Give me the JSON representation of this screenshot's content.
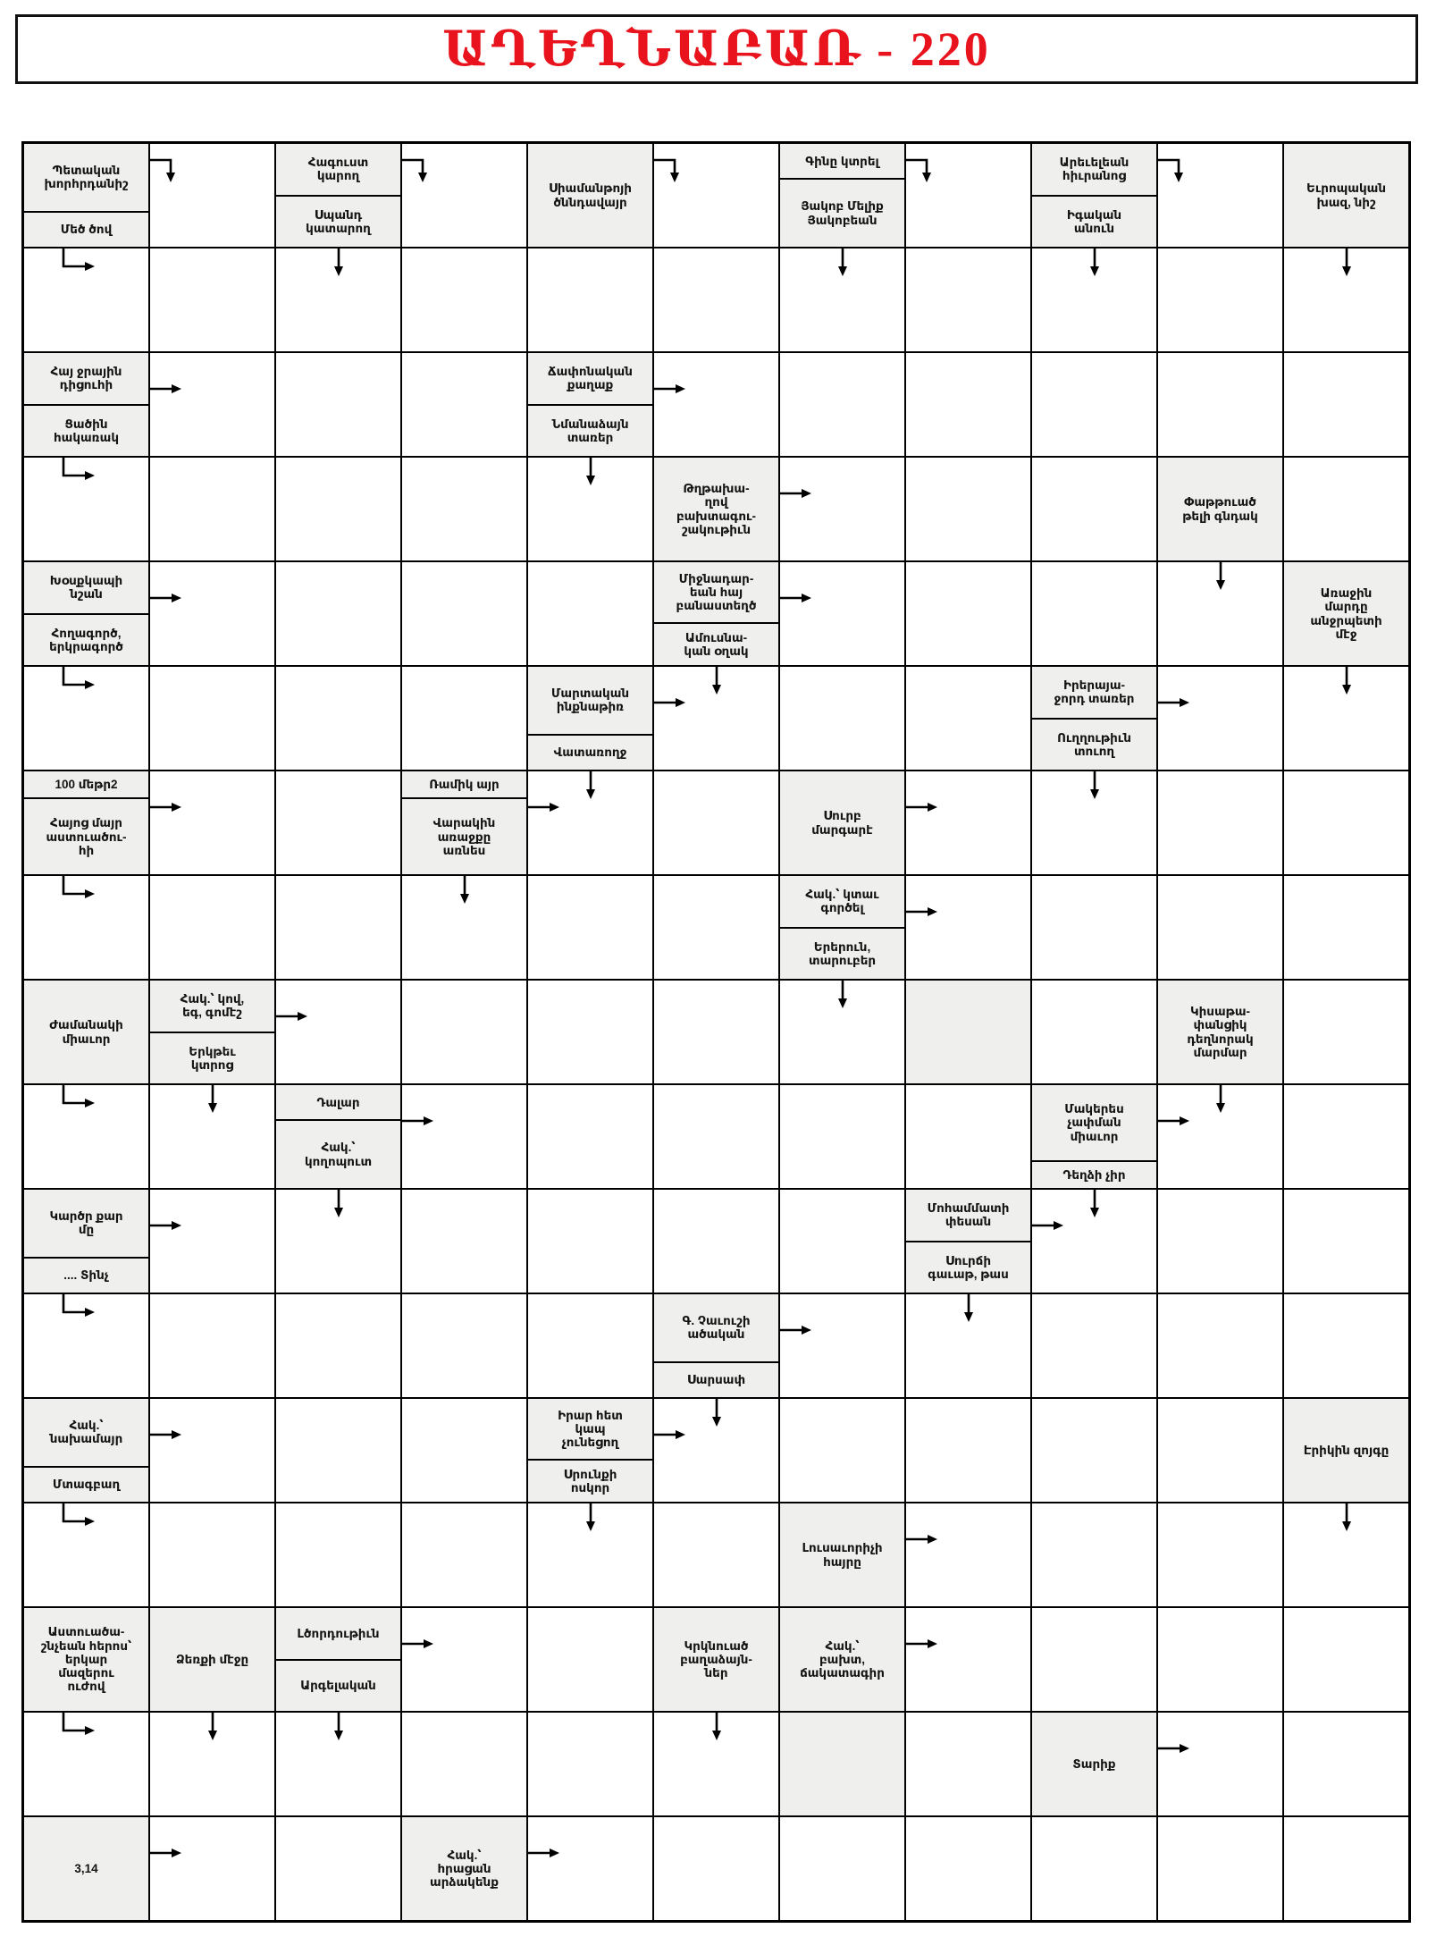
{
  "title": "ԱՂԵՂՆԱԲԱՌ - 220",
  "title_color": "#e8131d",
  "grid": {
    "rows": 17,
    "cols": 11,
    "clue_bg": "#efefed",
    "line_color": "#000000",
    "cells": [
      {
        "r": 1,
        "c": 1,
        "kind": "split",
        "top": [
          "Պետական",
          "խորհրդանիշ"
        ],
        "bottom": [
          "Մեծ ծով"
        ]
      },
      {
        "r": 1,
        "c": 2,
        "kind": "answer",
        "arrows": [
          "elbow-turn-down"
        ]
      },
      {
        "r": 1,
        "c": 3,
        "kind": "split",
        "top": [
          "Հագուստ",
          "կարող"
        ],
        "bottom": [
          "Սպանդ",
          "կատարող"
        ]
      },
      {
        "r": 1,
        "c": 4,
        "kind": "answer",
        "arrows": [
          "elbow-turn-down"
        ]
      },
      {
        "r": 1,
        "c": 5,
        "kind": "clue",
        "lines": [
          "Սիամանթոյի",
          "ծննդավայր"
        ]
      },
      {
        "r": 1,
        "c": 6,
        "kind": "answer",
        "arrows": [
          "elbow-turn-down"
        ]
      },
      {
        "r": 1,
        "c": 7,
        "kind": "split",
        "top": [
          "Գինը կտրել"
        ],
        "bottom": [
          "Յակոբ Մելիք",
          "Յակոբեան"
        ]
      },
      {
        "r": 1,
        "c": 8,
        "kind": "answer",
        "arrows": [
          "elbow-turn-down"
        ]
      },
      {
        "r": 1,
        "c": 9,
        "kind": "split",
        "top": [
          "Արեւելեան",
          "հիւրանոց"
        ],
        "bottom": [
          "Իգական",
          "անուն"
        ]
      },
      {
        "r": 1,
        "c": 10,
        "kind": "answer",
        "arrows": [
          "elbow-turn-down"
        ]
      },
      {
        "r": 1,
        "c": 11,
        "kind": "clue",
        "lines": [
          "Եւրոպական",
          "խազ, նիշ"
        ]
      },
      {
        "r": 2,
        "c": 1,
        "kind": "answer",
        "arrows": [
          "elbow-turn-right"
        ]
      },
      {
        "r": 2,
        "c": 3,
        "kind": "answer",
        "arrows": [
          "down"
        ]
      },
      {
        "r": 2,
        "c": 7,
        "kind": "answer",
        "arrows": [
          "down"
        ]
      },
      {
        "r": 2,
        "c": 9,
        "kind": "answer",
        "arrows": [
          "down"
        ]
      },
      {
        "r": 2,
        "c": 11,
        "kind": "answer",
        "arrows": [
          "down"
        ]
      },
      {
        "r": 3,
        "c": 1,
        "kind": "split",
        "top": [
          "Հայ ջրային",
          "դիցուհի"
        ],
        "bottom": [
          "Ցածին",
          "հակառակ"
        ]
      },
      {
        "r": 3,
        "c": 2,
        "kind": "answer",
        "arrows": [
          "right"
        ]
      },
      {
        "r": 3,
        "c": 5,
        "kind": "split",
        "top": [
          "Ճափոնական",
          "քաղաք"
        ],
        "bottom": [
          "Նմանաձայն",
          "տառեր"
        ]
      },
      {
        "r": 3,
        "c": 6,
        "kind": "answer",
        "arrows": [
          "right"
        ]
      },
      {
        "r": 4,
        "c": 1,
        "kind": "answer",
        "arrows": [
          "elbow-turn-right"
        ]
      },
      {
        "r": 4,
        "c": 5,
        "kind": "answer",
        "arrows": [
          "down"
        ]
      },
      {
        "r": 4,
        "c": 6,
        "kind": "clue",
        "lines": [
          "Թղթախա-",
          "ղով",
          "բախտագու-",
          "շակութիւն"
        ]
      },
      {
        "r": 4,
        "c": 7,
        "kind": "answer",
        "arrows": [
          "right"
        ]
      },
      {
        "r": 4,
        "c": 10,
        "kind": "clue",
        "lines": [
          "Փաթթուած",
          "թելի գնդակ"
        ]
      },
      {
        "r": 5,
        "c": 1,
        "kind": "split",
        "top": [
          "Խօսքկապի",
          "նշան"
        ],
        "bottom": [
          "Հողագործ,",
          "երկրագործ"
        ]
      },
      {
        "r": 5,
        "c": 2,
        "kind": "answer",
        "arrows": [
          "right"
        ]
      },
      {
        "r": 5,
        "c": 6,
        "kind": "split",
        "top": [
          "Միջնադար-",
          "եան հայ",
          "բանաստեղծ"
        ],
        "bottom": [
          "Ամուսնա-",
          "կան օղակ"
        ]
      },
      {
        "r": 5,
        "c": 7,
        "kind": "answer",
        "arrows": [
          "right"
        ]
      },
      {
        "r": 5,
        "c": 10,
        "kind": "answer",
        "arrows": [
          "down"
        ]
      },
      {
        "r": 5,
        "c": 11,
        "kind": "clue",
        "lines": [
          "Առաջին",
          "մարդը",
          "անջրպետի",
          "մէջ"
        ]
      },
      {
        "r": 6,
        "c": 1,
        "kind": "answer",
        "arrows": [
          "elbow-turn-right"
        ]
      },
      {
        "r": 6,
        "c": 5,
        "kind": "split",
        "top": [
          "Մարտական",
          "ինքնաթիռ"
        ],
        "bottom": [
          "Վատառողջ"
        ]
      },
      {
        "r": 6,
        "c": 6,
        "kind": "answer",
        "arrows": [
          "down",
          "right"
        ]
      },
      {
        "r": 6,
        "c": 9,
        "kind": "split",
        "top": [
          "Իրերայա-",
          "ջորդ տառեր"
        ],
        "bottom": [
          "Ուղղութիւն",
          "տուող"
        ]
      },
      {
        "r": 6,
        "c": 10,
        "kind": "answer",
        "arrows": [
          "right"
        ]
      },
      {
        "r": 6,
        "c": 11,
        "kind": "answer",
        "arrows": [
          "down"
        ]
      },
      {
        "r": 7,
        "c": 1,
        "kind": "split",
        "top": [
          "100 մեթր2"
        ],
        "bottom": [
          "Հայոց մայր",
          "աստուածու-",
          "հի"
        ]
      },
      {
        "r": 7,
        "c": 2,
        "kind": "answer",
        "arrows": [
          "right"
        ]
      },
      {
        "r": 7,
        "c": 4,
        "kind": "split",
        "top": [
          "Ռամիկ  այր"
        ],
        "bottom": [
          "Վարակին",
          "առաջքը",
          "առնես"
        ]
      },
      {
        "r": 7,
        "c": 5,
        "kind": "answer",
        "arrows": [
          "down",
          "right"
        ]
      },
      {
        "r": 7,
        "c": 7,
        "kind": "clue",
        "lines": [
          "Սուրբ",
          "մարգարէ"
        ]
      },
      {
        "r": 7,
        "c": 8,
        "kind": "answer",
        "arrows": [
          "right"
        ]
      },
      {
        "r": 7,
        "c": 9,
        "kind": "answer",
        "arrows": [
          "down"
        ]
      },
      {
        "r": 8,
        "c": 1,
        "kind": "answer",
        "arrows": [
          "elbow-turn-right"
        ]
      },
      {
        "r": 8,
        "c": 4,
        "kind": "answer",
        "arrows": [
          "down"
        ]
      },
      {
        "r": 8,
        "c": 7,
        "kind": "split",
        "top": [
          "Հակ.՝ կտաւ",
          "գործել"
        ],
        "bottom": [
          "Երերուն,",
          "տարուբեր"
        ]
      },
      {
        "r": 8,
        "c": 8,
        "kind": "answer",
        "arrows": [
          "right"
        ]
      },
      {
        "r": 9,
        "c": 1,
        "kind": "clue",
        "lines": [
          "Ժամանակի",
          "միաւոր"
        ]
      },
      {
        "r": 9,
        "c": 2,
        "kind": "split",
        "top": [
          "Հակ.՝  կով,",
          "եգ, գոմէշ"
        ],
        "bottom": [
          "Երկթեւ",
          "կտրոց"
        ]
      },
      {
        "r": 9,
        "c": 3,
        "kind": "answer",
        "arrows": [
          "right"
        ]
      },
      {
        "r": 9,
        "c": 7,
        "kind": "answer",
        "arrows": [
          "down"
        ]
      },
      {
        "r": 9,
        "c": 8,
        "kind": "blank"
      },
      {
        "r": 9,
        "c": 10,
        "kind": "clue",
        "lines": [
          "Կիսաթա-",
          "փանցիկ",
          "դեղնորակ",
          "մարմար"
        ]
      },
      {
        "r": 10,
        "c": 1,
        "kind": "answer",
        "arrows": [
          "elbow-turn-right"
        ]
      },
      {
        "r": 10,
        "c": 2,
        "kind": "answer",
        "arrows": [
          "down"
        ]
      },
      {
        "r": 10,
        "c": 3,
        "kind": "split",
        "top": [
          "Դալար"
        ],
        "bottom": [
          "Հակ.՝",
          "կողոպուտ"
        ]
      },
      {
        "r": 10,
        "c": 4,
        "kind": "answer",
        "arrows": [
          "right"
        ]
      },
      {
        "r": 10,
        "c": 9,
        "kind": "split",
        "top": [
          "Մակերես",
          "չափման",
          "միաւոր"
        ],
        "bottom": [
          "Դեղձի չիր"
        ]
      },
      {
        "r": 10,
        "c": 10,
        "kind": "answer",
        "arrows": [
          "down",
          "right"
        ]
      },
      {
        "r": 11,
        "c": 1,
        "kind": "split",
        "top": [
          "Կարծր քար",
          "մը"
        ],
        "bottom": [
          ".... Տինչ"
        ]
      },
      {
        "r": 11,
        "c": 2,
        "kind": "answer",
        "arrows": [
          "right"
        ]
      },
      {
        "r": 11,
        "c": 3,
        "kind": "answer",
        "arrows": [
          "down"
        ]
      },
      {
        "r": 11,
        "c": 8,
        "kind": "split",
        "top": [
          "Մոհամմատի",
          "փեսան"
        ],
        "bottom": [
          "Սուրճի",
          "գաւաթ, թաս"
        ]
      },
      {
        "r": 11,
        "c": 9,
        "kind": "answer",
        "arrows": [
          "down",
          "right"
        ]
      },
      {
        "r": 12,
        "c": 1,
        "kind": "answer",
        "arrows": [
          "elbow-turn-right"
        ]
      },
      {
        "r": 12,
        "c": 6,
        "kind": "split",
        "top": [
          "Գ. Չաւուշի",
          "ածական"
        ],
        "bottom": [
          "Սարսափ"
        ]
      },
      {
        "r": 12,
        "c": 7,
        "kind": "answer",
        "arrows": [
          "right"
        ]
      },
      {
        "r": 12,
        "c": 8,
        "kind": "answer",
        "arrows": [
          "down"
        ]
      },
      {
        "r": 13,
        "c": 1,
        "kind": "split",
        "top": [
          "Հակ.՝",
          "նախամայր"
        ],
        "bottom": [
          "Մտագբաղ"
        ]
      },
      {
        "r": 13,
        "c": 2,
        "kind": "answer",
        "arrows": [
          "right"
        ]
      },
      {
        "r": 13,
        "c": 5,
        "kind": "split",
        "top": [
          "Իրար հետ",
          "կապ",
          "չունեցող"
        ],
        "bottom": [
          "Սրունքի",
          "ոսկոր"
        ]
      },
      {
        "r": 13,
        "c": 6,
        "kind": "answer",
        "arrows": [
          "down",
          "right"
        ]
      },
      {
        "r": 13,
        "c": 11,
        "kind": "clue",
        "lines": [
          "Էրիկին զոյգը"
        ]
      },
      {
        "r": 14,
        "c": 1,
        "kind": "answer",
        "arrows": [
          "elbow-turn-right"
        ]
      },
      {
        "r": 14,
        "c": 5,
        "kind": "answer",
        "arrows": [
          "down"
        ]
      },
      {
        "r": 14,
        "c": 7,
        "kind": "clue",
        "lines": [
          "Լուսաւորիչի",
          "հայրը"
        ]
      },
      {
        "r": 14,
        "c": 8,
        "kind": "answer",
        "arrows": [
          "right"
        ]
      },
      {
        "r": 14,
        "c": 11,
        "kind": "answer",
        "arrows": [
          "down"
        ]
      },
      {
        "r": 15,
        "c": 1,
        "kind": "clue",
        "lines": [
          "Աստուածա-",
          "շնչեան հերոս՝",
          "երկար",
          "մազերու",
          "ուժով"
        ]
      },
      {
        "r": 15,
        "c": 2,
        "kind": "clue",
        "lines": [
          "Ձեռքի մէջը"
        ]
      },
      {
        "r": 15,
        "c": 3,
        "kind": "split",
        "top": [
          "Լծորդութիւն"
        ],
        "bottom": [
          "Արգելական"
        ]
      },
      {
        "r": 15,
        "c": 4,
        "kind": "answer",
        "arrows": [
          "right"
        ]
      },
      {
        "r": 15,
        "c": 6,
        "kind": "clue",
        "lines": [
          "Կրկնուած",
          "բաղաձայն-",
          "ներ"
        ]
      },
      {
        "r": 15,
        "c": 7,
        "kind": "clue",
        "lines": [
          "Հակ.՝",
          "բախտ,",
          "ճակատագիր"
        ]
      },
      {
        "r": 15,
        "c": 8,
        "kind": "answer",
        "arrows": [
          "right"
        ]
      },
      {
        "r": 16,
        "c": 1,
        "kind": "answer",
        "arrows": [
          "elbow-turn-right"
        ]
      },
      {
        "r": 16,
        "c": 2,
        "kind": "answer",
        "arrows": [
          "down"
        ]
      },
      {
        "r": 16,
        "c": 3,
        "kind": "answer",
        "arrows": [
          "down"
        ]
      },
      {
        "r": 16,
        "c": 6,
        "kind": "answer",
        "arrows": [
          "down"
        ]
      },
      {
        "r": 16,
        "c": 7,
        "kind": "blank"
      },
      {
        "r": 16,
        "c": 9,
        "kind": "clue",
        "lines": [
          "Տարիք"
        ]
      },
      {
        "r": 16,
        "c": 10,
        "kind": "answer",
        "arrows": [
          "right"
        ]
      },
      {
        "r": 17,
        "c": 1,
        "kind": "clue",
        "lines": [
          "3,14"
        ]
      },
      {
        "r": 17,
        "c": 2,
        "kind": "answer",
        "arrows": [
          "right"
        ]
      },
      {
        "r": 17,
        "c": 4,
        "kind": "clue",
        "lines": [
          "Հակ.՝",
          "հրացան",
          "արձակենք"
        ]
      },
      {
        "r": 17,
        "c": 5,
        "kind": "answer",
        "arrows": [
          "right"
        ]
      }
    ]
  }
}
